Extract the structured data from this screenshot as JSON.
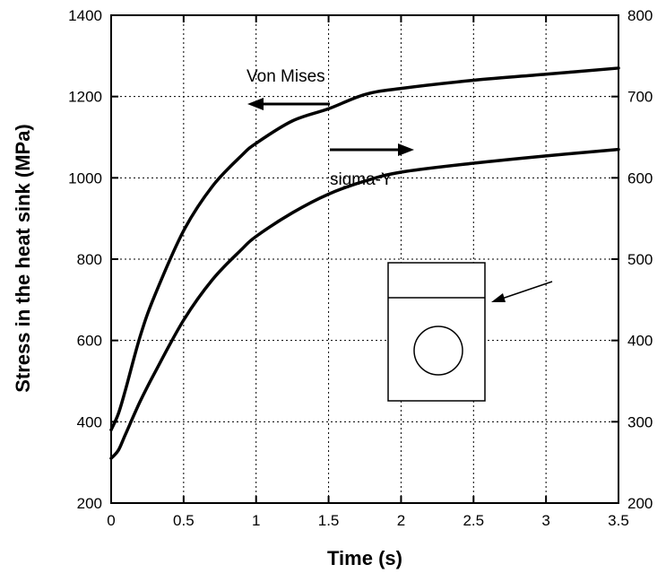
{
  "chart_data": {
    "type": "line",
    "xlabel": "Time (s)",
    "ylabel": "Stress in the heat sink (MPa)",
    "xlim": [
      0,
      3.5
    ],
    "ylim": [
      200,
      1400
    ],
    "y2lim": [
      200,
      800
    ],
    "xticks": [
      "0",
      "0.5",
      "1",
      "1.5",
      "2",
      "2.5",
      "3",
      "3.5"
    ],
    "yticks": [
      "200",
      "400",
      "600",
      "800",
      "1000",
      "1200",
      "1400"
    ],
    "y2ticks": [
      "200",
      "300",
      "400",
      "500",
      "600",
      "700",
      "800"
    ],
    "grid": true,
    "series": [
      {
        "name": "Von Mises",
        "axis": "left",
        "x": [
          0,
          0.05,
          0.1,
          0.2,
          0.3,
          0.5,
          0.7,
          0.9,
          1.0,
          1.25,
          1.5,
          1.75,
          2.0,
          2.5,
          3.0,
          3.5
        ],
        "y": [
          380,
          420,
          480,
          610,
          710,
          870,
          980,
          1055,
          1085,
          1140,
          1170,
          1205,
          1220,
          1240,
          1255,
          1270
        ]
      },
      {
        "name": "sigma-Y",
        "axis": "right",
        "x": [
          0,
          0.05,
          0.1,
          0.2,
          0.3,
          0.5,
          0.7,
          0.9,
          1.0,
          1.25,
          1.5,
          1.75,
          2.0,
          2.5,
          3.0,
          3.5
        ],
        "y": [
          255,
          265,
          285,
          325,
          360,
          425,
          475,
          512,
          528,
          557,
          580,
          596,
          607,
          618,
          627,
          635
        ]
      }
    ],
    "annotations": [
      {
        "text": "Von Mises",
        "arrow": "left"
      },
      {
        "text": "sigma-Y",
        "arrow": "right"
      }
    ]
  }
}
